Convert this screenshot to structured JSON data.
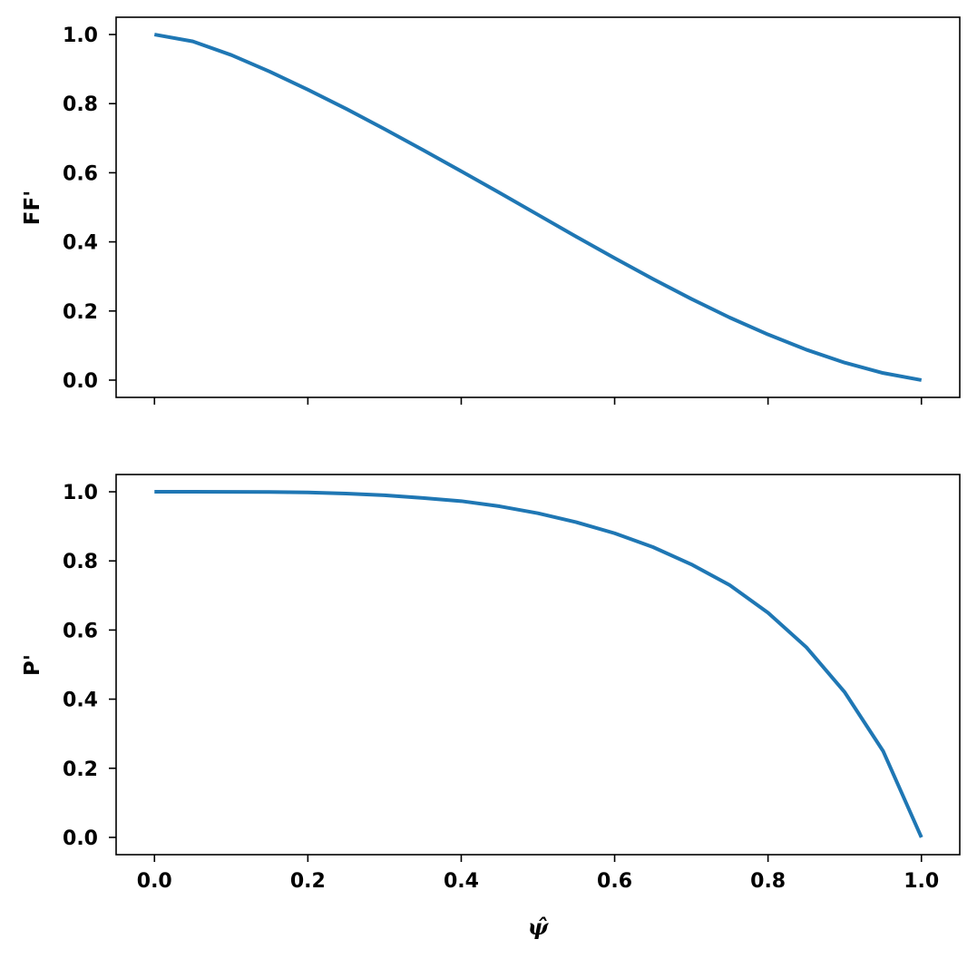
{
  "chart_data": [
    {
      "type": "line",
      "title": "",
      "xlabel": "",
      "ylabel": "FF'",
      "xlim": [
        -0.05,
        1.05
      ],
      "ylim": [
        -0.05,
        1.05
      ],
      "xticks": [
        0.0,
        0.2,
        0.4,
        0.6,
        0.8,
        1.0
      ],
      "xtick_labels": [
        "",
        "",
        "",
        "",
        "",
        ""
      ],
      "yticks": [
        0.0,
        0.2,
        0.4,
        0.6,
        0.8,
        1.0
      ],
      "ytick_labels": [
        "0.0",
        "0.2",
        "0.4",
        "0.6",
        "0.8",
        "1.0"
      ],
      "grid": false,
      "series": [
        {
          "color": "#1f77b4",
          "x": [
            0.0,
            0.05,
            0.1,
            0.15,
            0.2,
            0.25,
            0.3,
            0.35,
            0.4,
            0.45,
            0.5,
            0.55,
            0.6,
            0.65,
            0.7,
            0.75,
            0.8,
            0.85,
            0.9,
            0.95,
            1.0
          ],
          "y": [
            1.0,
            0.9801,
            0.9409,
            0.893,
            0.8405,
            0.785,
            0.7265,
            0.666,
            0.6045,
            0.542,
            0.4785,
            0.415,
            0.353,
            0.2925,
            0.235,
            0.181,
            0.132,
            0.088,
            0.0505,
            0.0205,
            0.0
          ]
        }
      ]
    },
    {
      "type": "line",
      "title": "",
      "xlabel": "ψ̂",
      "ylabel": "P'",
      "xlim": [
        -0.05,
        1.05
      ],
      "ylim": [
        -0.05,
        1.05
      ],
      "xticks": [
        0.0,
        0.2,
        0.4,
        0.6,
        0.8,
        1.0
      ],
      "xtick_labels": [
        "0.0",
        "0.2",
        "0.4",
        "0.6",
        "0.8",
        "1.0"
      ],
      "yticks": [
        0.0,
        0.2,
        0.4,
        0.6,
        0.8,
        1.0
      ],
      "ytick_labels": [
        "0.0",
        "0.2",
        "0.4",
        "0.6",
        "0.8",
        "1.0"
      ],
      "grid": false,
      "series": [
        {
          "color": "#1f77b4",
          "x": [
            0.0,
            0.05,
            0.1,
            0.15,
            0.2,
            0.25,
            0.3,
            0.35,
            0.4,
            0.45,
            0.5,
            0.55,
            0.6,
            0.65,
            0.7,
            0.75,
            0.8,
            0.85,
            0.9,
            0.95,
            1.0
          ],
          "y": [
            1.0,
            1.0,
            0.9998,
            0.9993,
            0.998,
            0.995,
            0.99,
            0.982,
            0.973,
            0.958,
            0.938,
            0.912,
            0.88,
            0.84,
            0.79,
            0.73,
            0.65,
            0.55,
            0.42,
            0.25,
            0.0
          ]
        }
      ]
    }
  ]
}
